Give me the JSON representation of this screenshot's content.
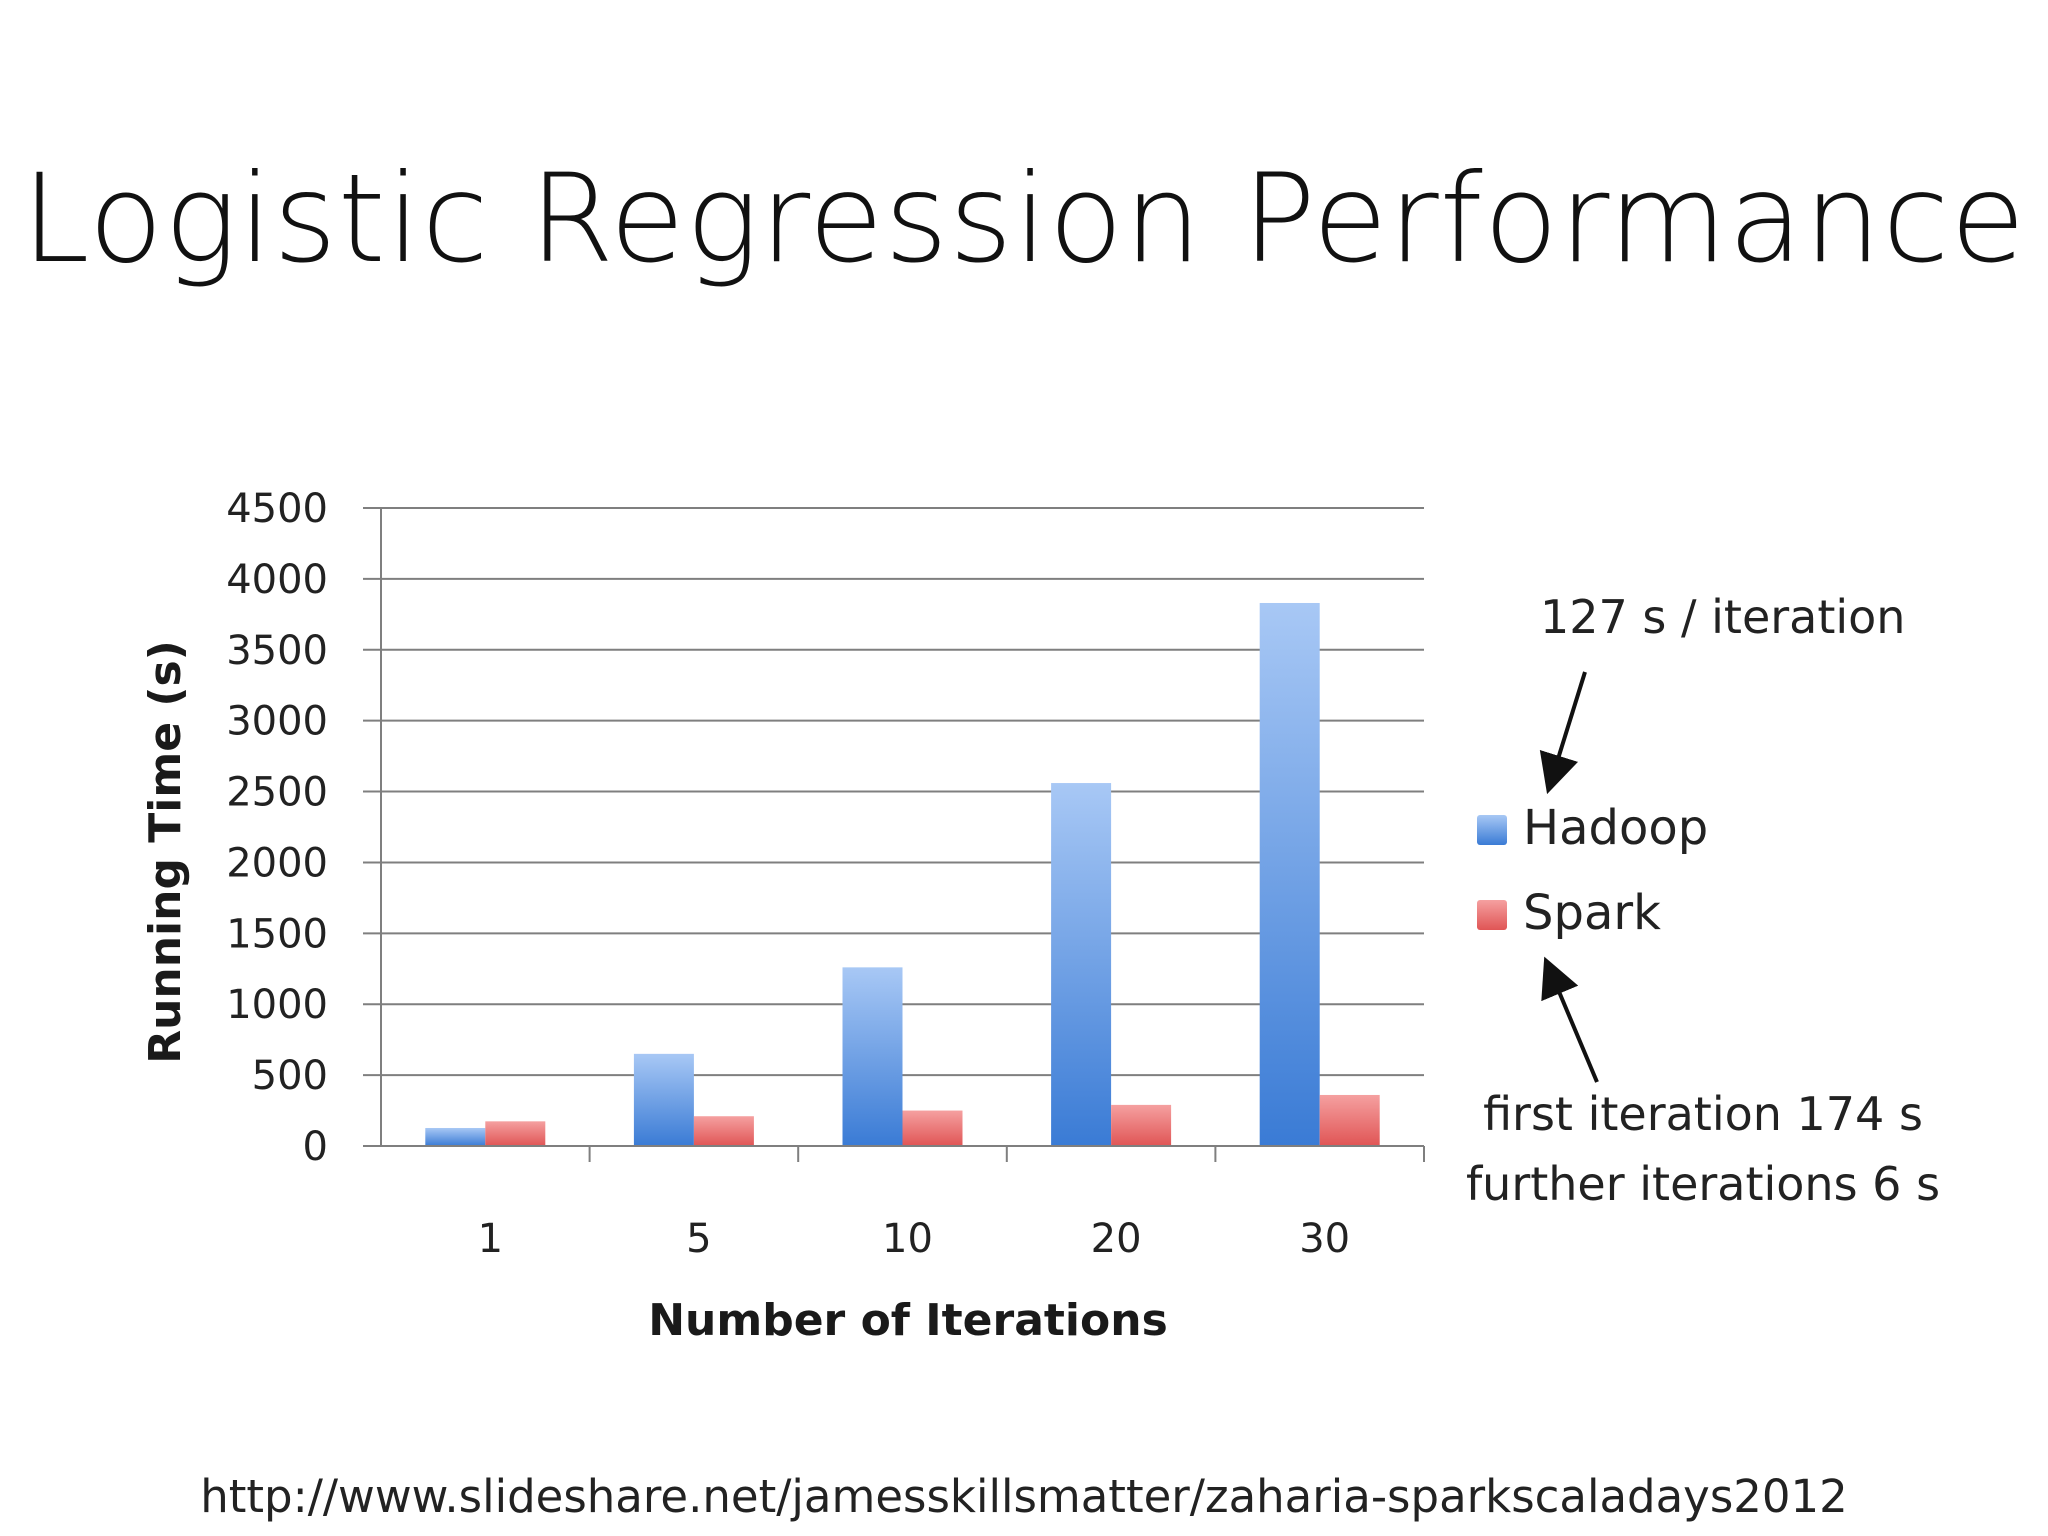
{
  "slide": {
    "title": "Logistic Regression Performance",
    "source_url": "http://www.slideshare.net/jamesskillsmatter/zaharia-sparkscaladays2012"
  },
  "colors": {
    "hadoop_top": "#a8c8f5",
    "hadoop_bottom": "#3a7bd5",
    "spark_top": "#f5a0a0",
    "spark_bottom": "#e05555",
    "grid": "#7f7f7f",
    "axis": "#7f7f7f"
  },
  "chart_data": {
    "type": "bar",
    "title": "",
    "xlabel": "Number of Iterations",
    "ylabel": "Running Time (s)",
    "categories": [
      "1",
      "5",
      "10",
      "20",
      "30"
    ],
    "series": [
      {
        "name": "Hadoop",
        "values": [
          127,
          650,
          1260,
          2560,
          3830
        ]
      },
      {
        "name": "Spark",
        "values": [
          174,
          210,
          250,
          290,
          360
        ]
      }
    ],
    "yticks": [
      "0",
      "500",
      "1000",
      "1500",
      "2000",
      "2500",
      "3000",
      "3500",
      "4000",
      "4500"
    ],
    "ylim": [
      0,
      4500
    ],
    "grid": true,
    "legend_position": "right",
    "annotations": {
      "hadoop_note": "127 s / iteration",
      "spark_note_line1": "first iteration 174 s",
      "spark_note_line2": "further iterations 6 s"
    }
  }
}
